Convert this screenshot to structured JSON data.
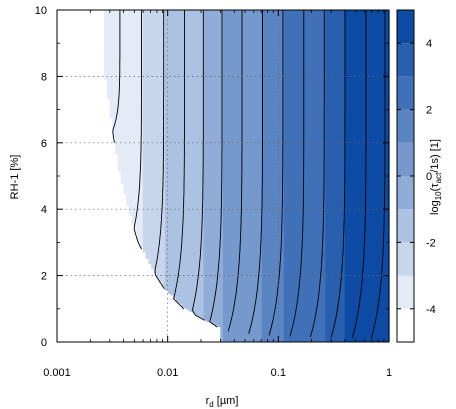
{
  "chart_data": {
    "type": "heatmap",
    "title": "",
    "xlabel": {
      "main": "r",
      "sub": "d",
      "rest": " [µm]"
    },
    "ylabel": "RH-1 [%]",
    "colorbar_label": {
      "pre": "log",
      "sub1": "10",
      "mid": "(τ",
      "sub2": "act",
      "post": "/1s) [1]"
    },
    "x_scale": "log",
    "xlim": [
      0.001,
      1
    ],
    "ylim": [
      0,
      10
    ],
    "x_ticks": [
      {
        "value": 0.001,
        "label": "0.001"
      },
      {
        "value": 0.01,
        "label": "0.01"
      },
      {
        "value": 0.1,
        "label": "0.1"
      },
      {
        "value": 1,
        "label": "1"
      }
    ],
    "y_ticks": [
      {
        "value": 0,
        "label": "0"
      },
      {
        "value": 2,
        "label": "2"
      },
      {
        "value": 4,
        "label": "4"
      },
      {
        "value": 6,
        "label": "6"
      },
      {
        "value": 8,
        "label": "8"
      },
      {
        "value": 10,
        "label": "10"
      }
    ],
    "colorbar_range": [
      -5,
      5
    ],
    "colorbar_ticks": [
      {
        "value": -4,
        "label": "-4"
      },
      {
        "value": -2,
        "label": "-2"
      },
      {
        "value": 0,
        "label": "0"
      },
      {
        "value": 2,
        "label": "2"
      },
      {
        "value": 4,
        "label": "4"
      }
    ],
    "levels": [
      {
        "lo": -5,
        "hi": -4,
        "color": "#ffffff"
      },
      {
        "lo": -4,
        "hi": -3,
        "color": "#e4ebf6"
      },
      {
        "lo": -3,
        "hi": -2,
        "color": "#c8d6ec"
      },
      {
        "lo": -2,
        "hi": -1,
        "color": "#acc2e2"
      },
      {
        "lo": -1,
        "hi": 0,
        "color": "#90add8"
      },
      {
        "lo": 0,
        "hi": 1,
        "color": "#7599cd"
      },
      {
        "lo": 1,
        "hi": 2,
        "color": "#5a84c2"
      },
      {
        "lo": 2,
        "hi": 3,
        "color": "#4071b8"
      },
      {
        "lo": 3,
        "hi": 4,
        "color": "#285fae"
      },
      {
        "lo": 4,
        "hi": 5,
        "color": "#0d4ba4"
      }
    ],
    "filled_region_boundary": [
      {
        "rh": 10,
        "rd": 0.0026
      },
      {
        "rh": 8,
        "rd": 0.0027
      },
      {
        "rh": 6,
        "rd": 0.0033
      },
      {
        "rh": 5,
        "rd": 0.0037
      },
      {
        "rh": 4,
        "rd": 0.0044
      },
      {
        "rh": 3,
        "rd": 0.0054
      },
      {
        "rh": 2,
        "rd": 0.0078
      },
      {
        "rh": 1.5,
        "rd": 0.0098
      },
      {
        "rh": 1,
        "rd": 0.014
      },
      {
        "rh": 0.6,
        "rd": 0.023
      },
      {
        "rh": 0.4,
        "rd": 0.03
      }
    ],
    "contour_positions": [
      {
        "rd": 0.0026,
        "rh_turn": 10
      },
      {
        "rd": 0.0037,
        "rh_turn": 6
      },
      {
        "rd": 0.0058,
        "rh_turn": 2.8
      },
      {
        "rd": 0.0092,
        "rh_turn": 1.6
      },
      {
        "rd": 0.0142,
        "rh_turn": 1.0
      },
      {
        "rd": 0.021,
        "rh_turn": 0.65
      },
      {
        "rd": 0.031,
        "rh_turn": 0.45
      },
      {
        "rd": 0.047,
        "rh_turn": 0.32
      },
      {
        "rd": 0.072,
        "rh_turn": 0.25
      },
      {
        "rd": 0.11,
        "rh_turn": 0.2
      },
      {
        "rd": 0.17,
        "rh_turn": 0.17
      },
      {
        "rd": 0.26,
        "rh_turn": 0.15
      },
      {
        "rd": 0.4,
        "rh_turn": 0.13
      },
      {
        "rd": 0.62,
        "rh_turn": 0.12
      },
      {
        "rd": 0.92,
        "rh_turn": 0.1
      }
    ],
    "grid": true,
    "legend": "colorbar-right"
  }
}
